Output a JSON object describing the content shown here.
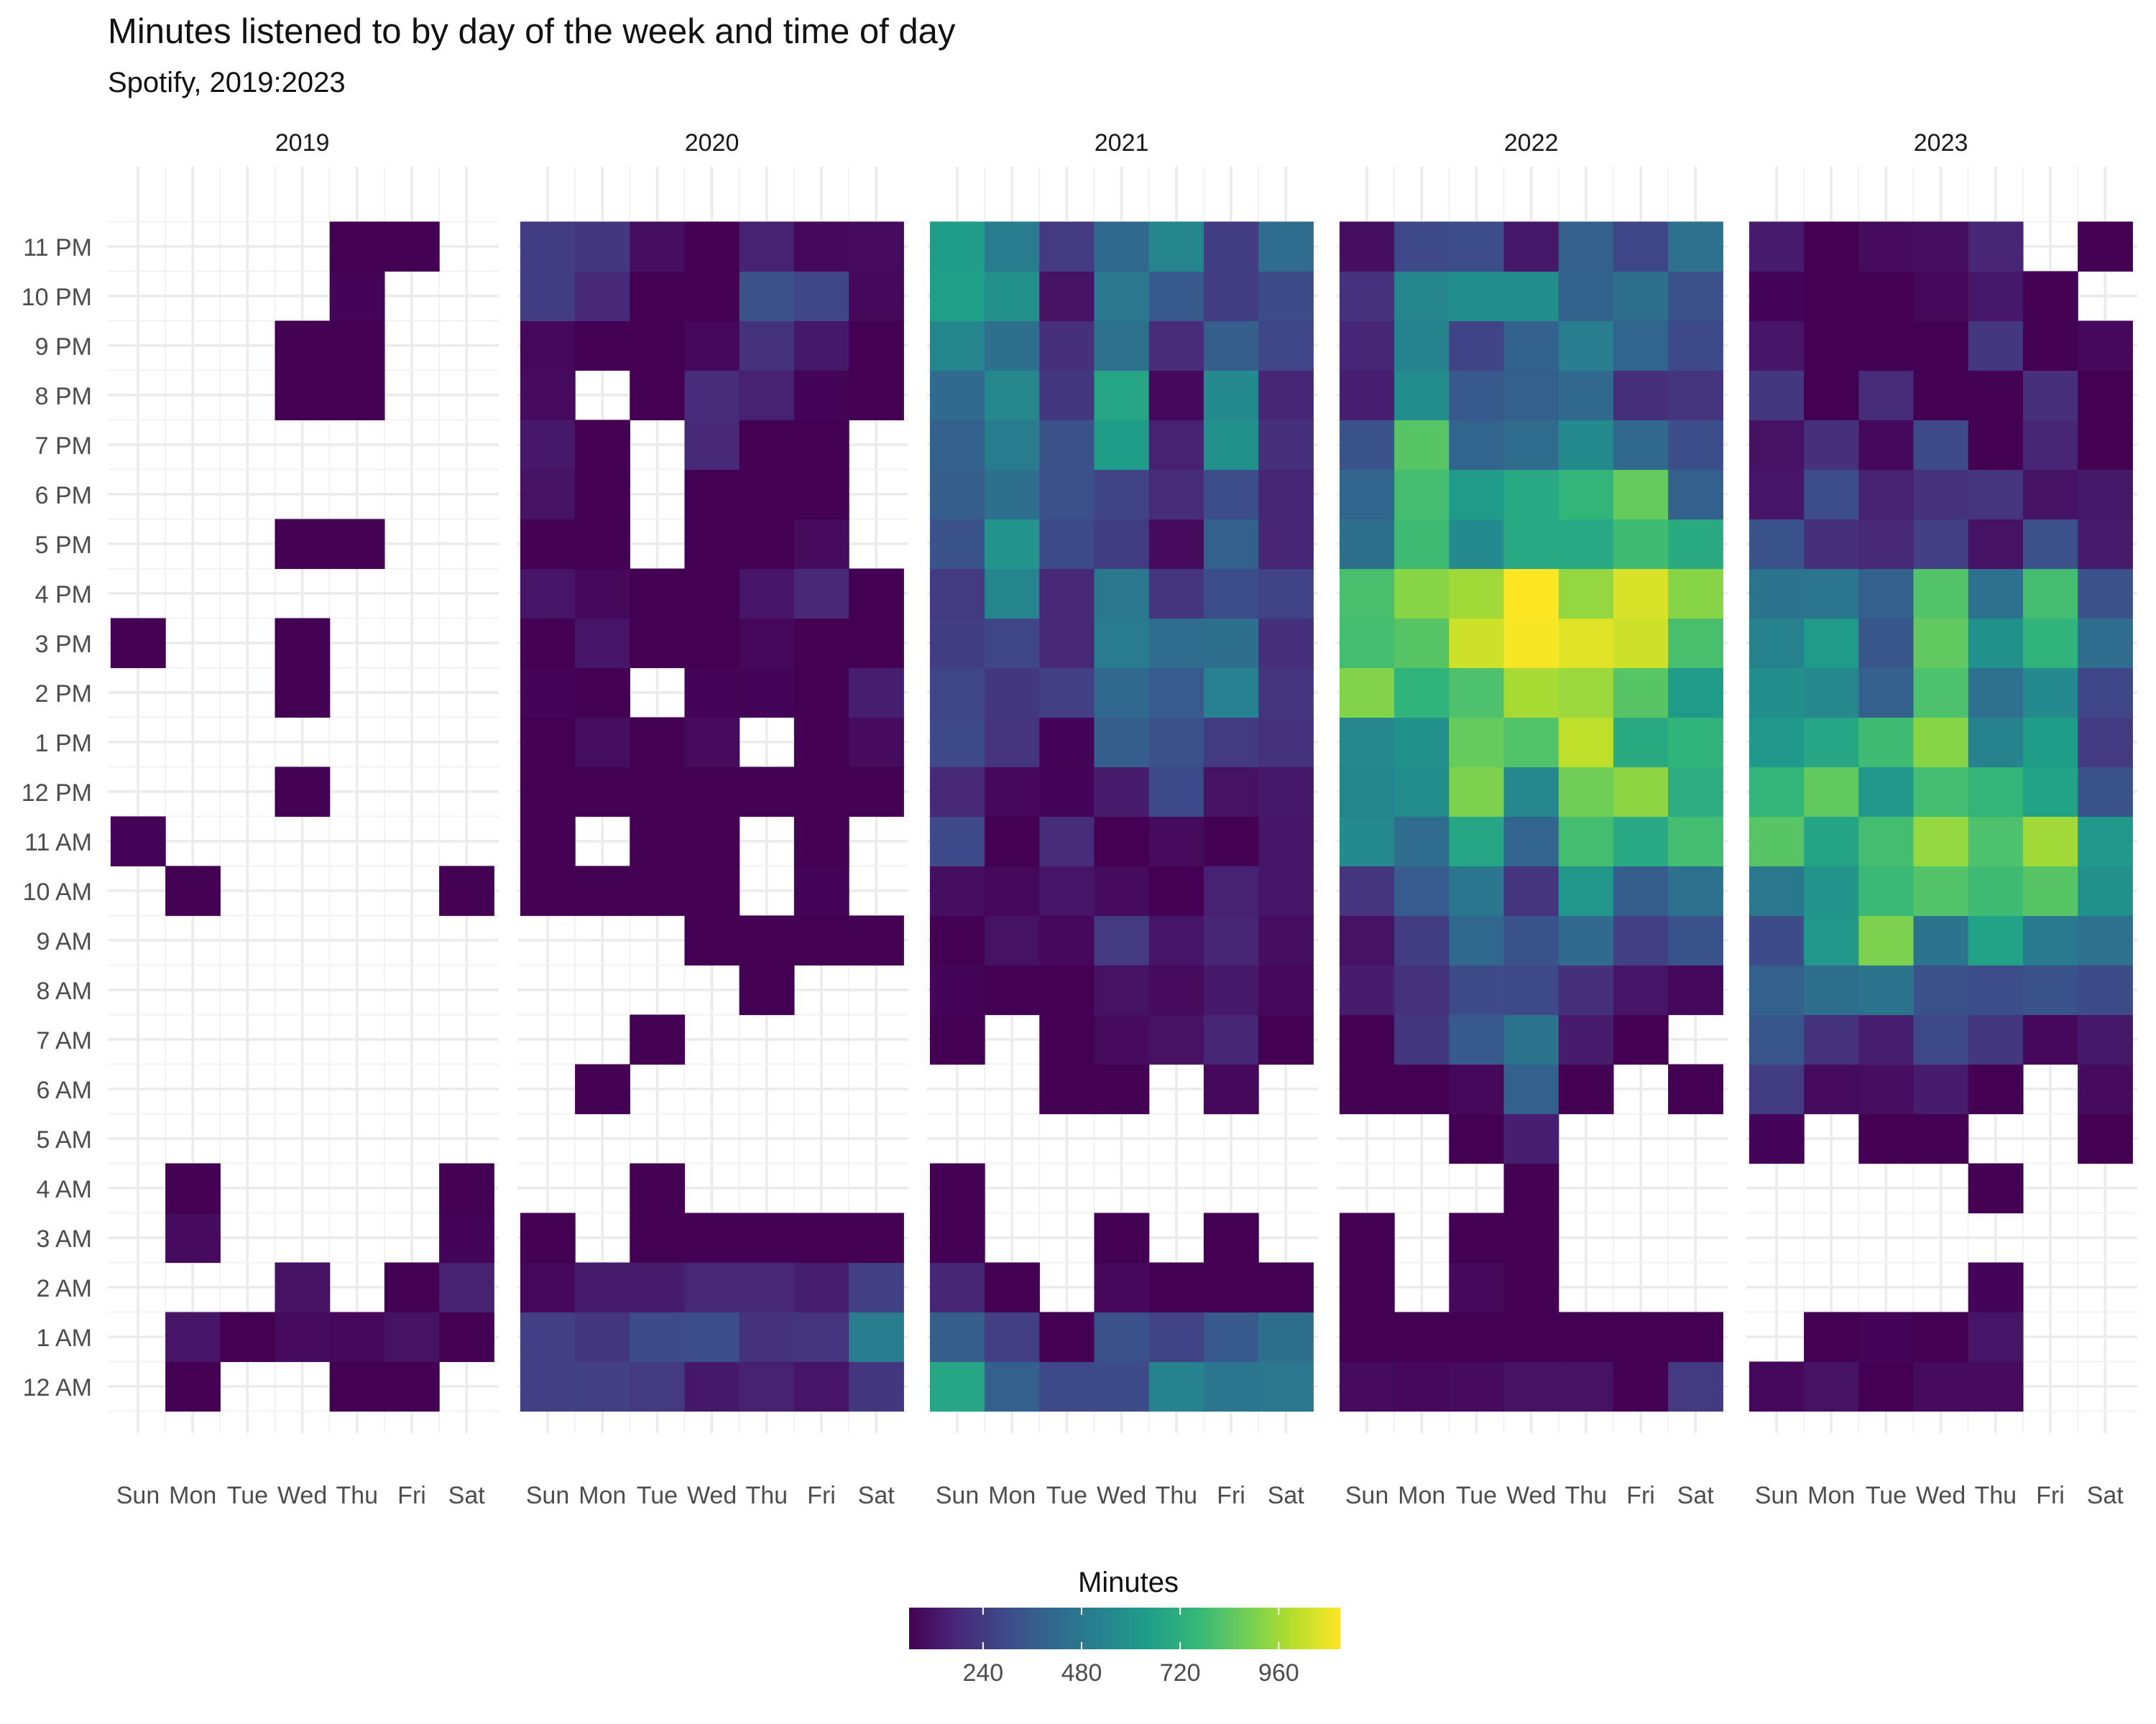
{
  "chart_data": {
    "type": "heatmap",
    "title": "Minutes listened to by day of the week and time of day",
    "subtitle": "Spotify, 2019:2023",
    "x_categories": [
      "Sun",
      "Mon",
      "Tue",
      "Wed",
      "Thu",
      "Fri",
      "Sat"
    ],
    "y_categories": [
      "12 AM",
      "1 AM",
      "2 AM",
      "3 AM",
      "4 AM",
      "5 AM",
      "6 AM",
      "7 AM",
      "8 AM",
      "9 AM",
      "10 AM",
      "11 AM",
      "12 PM",
      "1 PM",
      "2 PM",
      "3 PM",
      "4 PM",
      "5 PM",
      "6 PM",
      "7 PM",
      "8 PM",
      "9 PM",
      "10 PM",
      "11 PM"
    ],
    "legend": {
      "title": "Minutes",
      "ticks": [
        240,
        480,
        720,
        960
      ],
      "range": [
        60,
        1110
      ],
      "palette": "viridis",
      "position": "bottom"
    },
    "grid": true,
    "panels": [
      {
        "facet": "2019",
        "values": [
          [
            null,
            40,
            null,
            null,
            50,
            20,
            null
          ],
          [
            null,
            120,
            60,
            90,
            80,
            110,
            60
          ],
          [
            null,
            null,
            null,
            110,
            null,
            40,
            160
          ],
          [
            null,
            90,
            null,
            null,
            null,
            null,
            70
          ],
          [
            null,
            40,
            null,
            null,
            null,
            null,
            30
          ],
          [
            null,
            null,
            null,
            null,
            null,
            null,
            null
          ],
          [
            null,
            null,
            null,
            null,
            null,
            null,
            null
          ],
          [
            null,
            null,
            null,
            null,
            null,
            null,
            null
          ],
          [
            null,
            null,
            null,
            null,
            null,
            null,
            null
          ],
          [
            null,
            null,
            null,
            null,
            null,
            null,
            null
          ],
          [
            null,
            30,
            null,
            null,
            null,
            null,
            30
          ],
          [
            70,
            null,
            null,
            null,
            null,
            null,
            null
          ],
          [
            null,
            null,
            null,
            40,
            null,
            null,
            null
          ],
          [
            null,
            null,
            null,
            null,
            null,
            null,
            null
          ],
          [
            null,
            null,
            null,
            40,
            null,
            null,
            null
          ],
          [
            40,
            null,
            null,
            50,
            null,
            null,
            null
          ],
          [
            null,
            null,
            null,
            null,
            null,
            null,
            null
          ],
          [
            null,
            null,
            null,
            40,
            30,
            null,
            null
          ],
          [
            null,
            null,
            null,
            null,
            null,
            null,
            null
          ],
          [
            null,
            null,
            null,
            null,
            null,
            null,
            null
          ],
          [
            null,
            null,
            null,
            30,
            40,
            null,
            null
          ],
          [
            null,
            null,
            null,
            20,
            60,
            null,
            null
          ],
          [
            null,
            null,
            null,
            null,
            70,
            null,
            null
          ],
          [
            null,
            null,
            null,
            null,
            40,
            20,
            null
          ]
        ]
      },
      {
        "facet": "2020",
        "values": [
          [
            260,
            260,
            240,
            130,
            160,
            120,
            230
          ],
          [
            260,
            230,
            300,
            310,
            210,
            220,
            500
          ],
          [
            80,
            140,
            140,
            180,
            180,
            150,
            260
          ],
          [
            40,
            null,
            40,
            50,
            50,
            30,
            40
          ],
          [
            null,
            null,
            50,
            null,
            null,
            null,
            null
          ],
          [
            null,
            null,
            null,
            null,
            null,
            null,
            null
          ],
          [
            null,
            20,
            null,
            null,
            null,
            null,
            null
          ],
          [
            null,
            null,
            30,
            null,
            null,
            null,
            null
          ],
          [
            null,
            null,
            null,
            null,
            30,
            null,
            null
          ],
          [
            null,
            null,
            null,
            20,
            20,
            20,
            20
          ],
          [
            20,
            20,
            40,
            20,
            null,
            70,
            null
          ],
          [
            20,
            null,
            60,
            20,
            null,
            60,
            null
          ],
          [
            20,
            50,
            40,
            40,
            20,
            20,
            30
          ],
          [
            60,
            100,
            30,
            90,
            null,
            30,
            90
          ],
          [
            70,
            50,
            null,
            70,
            70,
            20,
            150
          ],
          [
            60,
            120,
            50,
            10,
            80,
            60,
            60
          ],
          [
            120,
            80,
            60,
            40,
            120,
            180,
            60
          ],
          [
            30,
            30,
            null,
            50,
            60,
            90,
            null
          ],
          [
            110,
            40,
            null,
            60,
            30,
            10,
            null
          ],
          [
            130,
            20,
            null,
            180,
            60,
            60,
            null
          ],
          [
            90,
            null,
            40,
            190,
            160,
            70,
            10
          ],
          [
            80,
            20,
            30,
            80,
            210,
            130,
            10
          ],
          [
            250,
            180,
            60,
            40,
            320,
            280,
            80
          ],
          [
            250,
            230,
            100,
            20,
            160,
            80,
            90
          ]
        ]
      },
      {
        "facet": "2021",
        "values": [
          [
            680,
            380,
            290,
            300,
            530,
            470,
            480
          ],
          [
            370,
            260,
            40,
            320,
            270,
            350,
            440
          ],
          [
            170,
            60,
            null,
            80,
            20,
            60,
            50
          ],
          [
            60,
            null,
            null,
            20,
            null,
            60,
            null
          ],
          [
            40,
            null,
            null,
            null,
            null,
            null,
            null
          ],
          [
            null,
            null,
            null,
            null,
            null,
            null,
            null
          ],
          [
            null,
            null,
            40,
            30,
            null,
            80,
            null
          ],
          [
            30,
            null,
            40,
            90,
            110,
            170,
            50
          ],
          [
            70,
            60,
            60,
            110,
            90,
            130,
            80
          ],
          [
            20,
            110,
            80,
            240,
            120,
            170,
            100
          ],
          [
            100,
            80,
            120,
            90,
            60,
            160,
            120
          ],
          [
            290,
            30,
            190,
            30,
            90,
            60,
            120
          ],
          [
            180,
            80,
            70,
            140,
            290,
            110,
            130
          ],
          [
            290,
            220,
            70,
            370,
            320,
            240,
            210
          ],
          [
            280,
            230,
            260,
            410,
            360,
            520,
            220
          ],
          [
            250,
            280,
            180,
            500,
            430,
            440,
            200
          ],
          [
            240,
            540,
            180,
            480,
            220,
            310,
            270
          ],
          [
            330,
            600,
            300,
            250,
            90,
            380,
            170
          ],
          [
            370,
            440,
            320,
            270,
            190,
            310,
            170
          ],
          [
            380,
            500,
            320,
            640,
            160,
            590,
            200
          ],
          [
            420,
            550,
            230,
            680,
            80,
            560,
            170
          ],
          [
            540,
            440,
            200,
            450,
            190,
            370,
            280
          ],
          [
            650,
            590,
            110,
            480,
            350,
            250,
            300
          ],
          [
            640,
            500,
            240,
            410,
            540,
            250,
            430
          ]
        ]
      },
      {
        "facet": "2022",
        "values": [
          [
            90,
            80,
            90,
            110,
            110,
            60,
            240
          ],
          [
            60,
            10,
            20,
            40,
            40,
            20,
            50
          ],
          [
            30,
            null,
            80,
            20,
            null,
            null,
            null
          ],
          [
            30,
            null,
            40,
            10,
            null,
            null,
            null
          ],
          [
            null,
            null,
            null,
            20,
            null,
            null,
            null
          ],
          [
            null,
            null,
            20,
            150,
            null,
            null,
            null
          ],
          [
            10,
            10,
            80,
            380,
            20,
            null,
            20
          ],
          [
            50,
            230,
            350,
            460,
            140,
            30,
            null
          ],
          [
            140,
            210,
            300,
            290,
            200,
            120,
            80
          ],
          [
            110,
            250,
            410,
            330,
            420,
            260,
            330
          ],
          [
            220,
            360,
            470,
            220,
            610,
            370,
            450
          ],
          [
            560,
            430,
            680,
            400,
            790,
            690,
            790
          ],
          [
            540,
            570,
            900,
            550,
            880,
            930,
            710
          ],
          [
            550,
            590,
            860,
            820,
            1010,
            700,
            740
          ],
          [
            910,
            740,
            810,
            970,
            950,
            830,
            630
          ],
          [
            790,
            830,
            1030,
            1100,
            1060,
            1030,
            800
          ],
          [
            800,
            920,
            960,
            1110,
            940,
            1050,
            920
          ],
          [
            440,
            780,
            560,
            690,
            690,
            780,
            700
          ],
          [
            400,
            790,
            630,
            690,
            750,
            860,
            380
          ],
          [
            330,
            830,
            400,
            430,
            560,
            410,
            310
          ],
          [
            150,
            570,
            350,
            380,
            420,
            200,
            220
          ],
          [
            170,
            530,
            270,
            390,
            510,
            400,
            290
          ],
          [
            210,
            540,
            580,
            580,
            390,
            440,
            320
          ],
          [
            100,
            290,
            310,
            130,
            380,
            280,
            450
          ]
        ]
      },
      {
        "facet": "2023",
        "values": [
          [
            80,
            110,
            50,
            90,
            90,
            null,
            null
          ],
          [
            null,
            40,
            70,
            20,
            120,
            null,
            null
          ],
          [
            null,
            null,
            null,
            null,
            70,
            null,
            null
          ],
          [
            null,
            null,
            null,
            null,
            null,
            null,
            null
          ],
          [
            null,
            null,
            null,
            null,
            40,
            null,
            null
          ],
          [
            70,
            null,
            50,
            30,
            null,
            null,
            60
          ],
          [
            250,
            90,
            100,
            140,
            40,
            null,
            90
          ],
          [
            340,
            210,
            150,
            290,
            230,
            80,
            130
          ],
          [
            380,
            440,
            460,
            320,
            310,
            330,
            300
          ],
          [
            300,
            620,
            900,
            460,
            660,
            490,
            450
          ],
          [
            480,
            600,
            770,
            820,
            780,
            830,
            590
          ],
          [
            830,
            670,
            790,
            940,
            810,
            960,
            620
          ],
          [
            750,
            850,
            620,
            790,
            750,
            660,
            330
          ],
          [
            620,
            680,
            780,
            920,
            530,
            640,
            240
          ],
          [
            580,
            550,
            380,
            810,
            450,
            560,
            280
          ],
          [
            530,
            630,
            340,
            850,
            590,
            740,
            430
          ],
          [
            460,
            470,
            380,
            820,
            450,
            790,
            320
          ],
          [
            330,
            200,
            180,
            260,
            110,
            320,
            140
          ],
          [
            120,
            310,
            160,
            210,
            220,
            110,
            130
          ],
          [
            110,
            200,
            80,
            290,
            20,
            170,
            60
          ],
          [
            230,
            50,
            190,
            60,
            10,
            200,
            30
          ],
          [
            120,
            40,
            20,
            40,
            230,
            50,
            80
          ],
          [
            70,
            40,
            50,
            80,
            130,
            40,
            null
          ],
          [
            140,
            50,
            90,
            100,
            170,
            null,
            30
          ]
        ]
      }
    ]
  }
}
